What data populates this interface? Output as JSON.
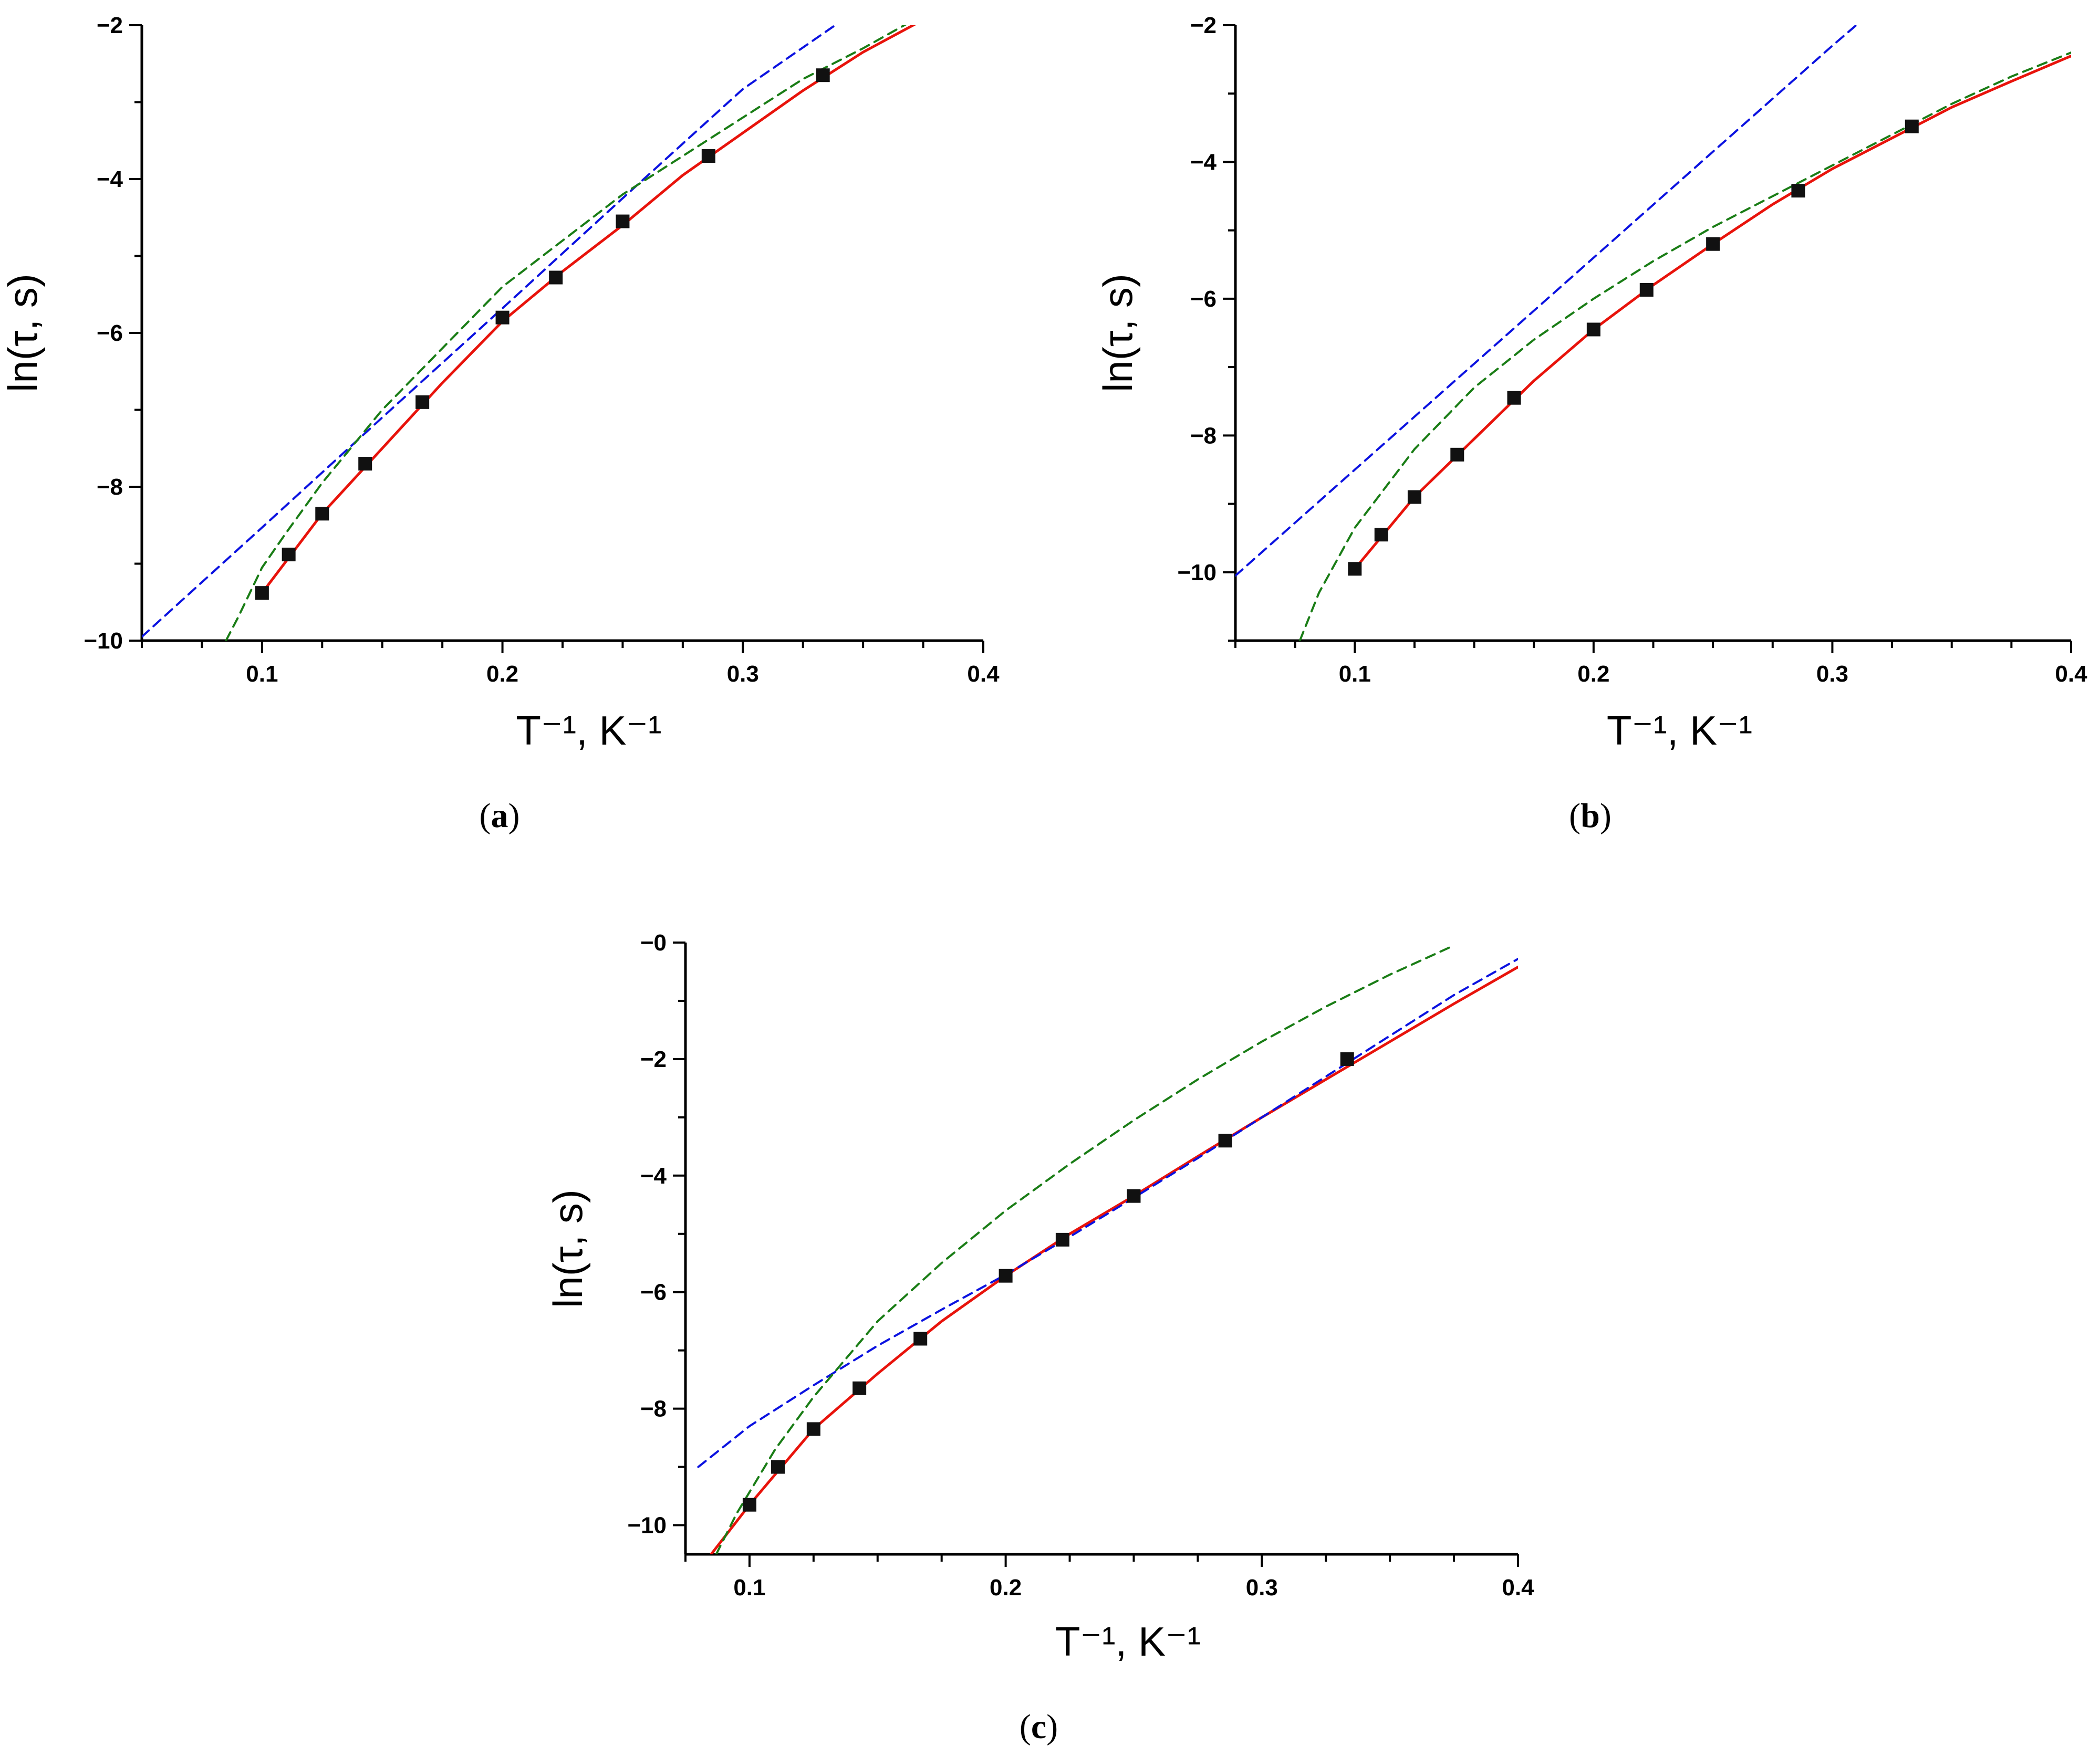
{
  "chart_data": [
    {
      "type": "line",
      "caption_letter": "a",
      "xlabel": "T⁻¹, K⁻¹",
      "ylabel": "ln(τ, s)",
      "xlim": [
        0.05,
        0.4
      ],
      "ylim": [
        -10,
        -2
      ],
      "x_ticks": [
        0.1,
        0.2,
        0.3,
        0.4
      ],
      "y_ticks": [
        -10,
        -8,
        -6,
        -4,
        -2
      ],
      "grid": false,
      "legend": "none",
      "points": {
        "x": [
          0.1,
          0.1111,
          0.125,
          0.1429,
          0.1667,
          0.2,
          0.2222,
          0.25,
          0.2857,
          0.3333
        ],
        "y": [
          -9.38,
          -8.88,
          -8.35,
          -7.7,
          -6.9,
          -5.8,
          -5.28,
          -4.55,
          -3.7,
          -2.65
        ]
      },
      "series": [
        {
          "style": "solid",
          "color": "#e8130b",
          "x": [
            0.1,
            0.125,
            0.15,
            0.175,
            0.2,
            0.225,
            0.25,
            0.275,
            0.3,
            0.325,
            0.35,
            0.372
          ],
          "y": [
            -9.38,
            -8.35,
            -7.5,
            -6.65,
            -5.85,
            -5.2,
            -4.6,
            -3.95,
            -3.4,
            -2.85,
            -2.35,
            -1.98
          ]
        },
        {
          "style": "dashed",
          "color": "#0b12e0",
          "x": [
            0.05,
            0.1,
            0.15,
            0.2,
            0.25,
            0.3,
            0.343
          ],
          "y": [
            -9.95,
            -8.53,
            -7.1,
            -5.68,
            -4.25,
            -2.83,
            -1.9
          ]
        },
        {
          "style": "dashed",
          "color": "#1a7d16",
          "x": [
            0.085,
            0.09,
            0.1,
            0.11,
            0.125,
            0.15,
            0.175,
            0.2,
            0.225,
            0.25,
            0.275,
            0.3,
            0.325,
            0.35,
            0.37
          ],
          "y": [
            -10.0,
            -9.7,
            -9.05,
            -8.6,
            -7.95,
            -7.0,
            -6.2,
            -5.4,
            -4.8,
            -4.2,
            -3.7,
            -3.2,
            -2.7,
            -2.3,
            -1.95
          ]
        }
      ]
    },
    {
      "type": "line",
      "caption_letter": "b",
      "xlabel": "T⁻¹, K⁻¹",
      "ylabel": "ln(τ, s)",
      "xlim": [
        0.05,
        0.4
      ],
      "ylim": [
        -11,
        -2
      ],
      "x_ticks": [
        0.1,
        0.2,
        0.3,
        0.4
      ],
      "y_ticks": [
        -10,
        -8,
        -6,
        -4,
        -2
      ],
      "grid": false,
      "legend": "none",
      "points": {
        "x": [
          0.1,
          0.1111,
          0.125,
          0.1429,
          0.1667,
          0.2,
          0.2222,
          0.25,
          0.2857,
          0.3333
        ],
        "y": [
          -9.95,
          -9.45,
          -8.9,
          -8.28,
          -7.45,
          -6.45,
          -5.87,
          -5.2,
          -4.42,
          -3.48
        ]
      },
      "series": [
        {
          "style": "solid",
          "color": "#e8130b",
          "x": [
            0.1,
            0.125,
            0.15,
            0.175,
            0.2,
            0.225,
            0.25,
            0.275,
            0.3,
            0.325,
            0.35,
            0.375,
            0.4
          ],
          "y": [
            -9.95,
            -8.9,
            -8.05,
            -7.2,
            -6.45,
            -5.8,
            -5.2,
            -4.62,
            -4.1,
            -3.65,
            -3.2,
            -2.82,
            -2.45
          ]
        },
        {
          "style": "dashed",
          "color": "#0b12e0",
          "x": [
            0.05,
            0.1,
            0.15,
            0.2,
            0.25,
            0.3,
            0.315
          ],
          "y": [
            -10.05,
            -8.5,
            -6.95,
            -5.4,
            -3.85,
            -2.3,
            -1.85
          ]
        },
        {
          "style": "dashed",
          "color": "#1a7d16",
          "x": [
            0.077,
            0.085,
            0.1,
            0.125,
            0.15,
            0.175,
            0.2,
            0.225,
            0.25,
            0.275,
            0.3,
            0.325,
            0.35,
            0.375,
            0.4
          ],
          "y": [
            -11.0,
            -10.3,
            -9.35,
            -8.2,
            -7.3,
            -6.6,
            -6.0,
            -5.45,
            -4.95,
            -4.5,
            -4.05,
            -3.6,
            -3.15,
            -2.75,
            -2.4
          ]
        }
      ]
    },
    {
      "type": "line",
      "caption_letter": "c",
      "xlabel": "T⁻¹, K⁻¹",
      "ylabel": "ln(τ, s)",
      "xlim": [
        0.075,
        0.4
      ],
      "ylim": [
        -10.5,
        0
      ],
      "x_ticks": [
        0.1,
        0.2,
        0.3,
        0.4
      ],
      "y_ticks": [
        -10,
        -8,
        -6,
        -4,
        -2,
        0
      ],
      "grid": false,
      "legend": "none",
      "points": {
        "x": [
          0.1,
          0.1111,
          0.125,
          0.1429,
          0.1667,
          0.2,
          0.2222,
          0.25,
          0.2857,
          0.3333
        ],
        "y": [
          -9.65,
          -9.0,
          -8.35,
          -7.65,
          -6.8,
          -5.72,
          -5.1,
          -4.35,
          -3.4,
          -2.0
        ]
      },
      "series": [
        {
          "style": "solid",
          "color": "#e8130b",
          "x": [
            0.085,
            0.1,
            0.125,
            0.15,
            0.175,
            0.2,
            0.225,
            0.25,
            0.275,
            0.3,
            0.325,
            0.35,
            0.375,
            0.4
          ],
          "y": [
            -10.5,
            -9.65,
            -8.35,
            -7.4,
            -6.5,
            -5.72,
            -5.0,
            -4.35,
            -3.67,
            -3.0,
            -2.35,
            -1.7,
            -1.05,
            -0.42
          ]
        },
        {
          "style": "dashed",
          "color": "#0b12e0",
          "x": [
            0.08,
            0.1,
            0.125,
            0.15,
            0.175,
            0.2,
            0.225,
            0.25,
            0.275,
            0.3,
            0.325,
            0.35,
            0.375,
            0.4
          ],
          "y": [
            -9.0,
            -8.3,
            -7.6,
            -6.92,
            -6.3,
            -5.7,
            -5.05,
            -4.38,
            -3.7,
            -3.0,
            -2.3,
            -1.6,
            -0.9,
            -0.28
          ]
        },
        {
          "style": "dashed",
          "color": "#1a7d16",
          "x": [
            0.087,
            0.095,
            0.11,
            0.125,
            0.15,
            0.175,
            0.2,
            0.225,
            0.25,
            0.275,
            0.3,
            0.325,
            0.35,
            0.375
          ],
          "y": [
            -10.5,
            -9.8,
            -8.7,
            -7.8,
            -6.5,
            -5.5,
            -4.6,
            -3.8,
            -3.05,
            -2.35,
            -1.7,
            -1.1,
            -0.55,
            -0.05
          ]
        }
      ]
    }
  ]
}
